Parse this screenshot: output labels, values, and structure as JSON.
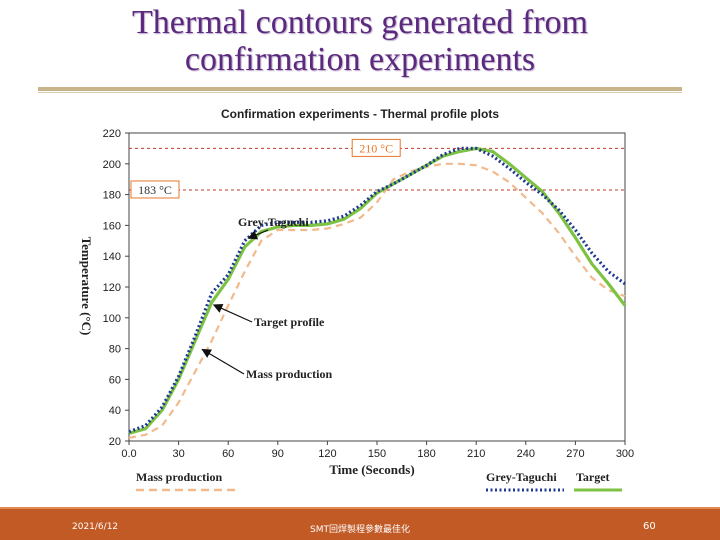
{
  "slide": {
    "title_line1": "Thermal contours generated from",
    "title_line2": "confirmation experiments"
  },
  "footer": {
    "date": "2021/6/12",
    "center": "SMT回焊製程參數最佳化",
    "page": "60"
  },
  "colors": {
    "mass_production": "#f2b98c",
    "grey_taguchi": "#1f3a93",
    "target": "#7dc242",
    "ref_line": "#c0392b",
    "label_box": "#e8782a"
  },
  "chart_data": {
    "type": "line",
    "title": "Confirmation  experiments  -  Thermal  profile  plots",
    "xlabel": "Time (Seconds)",
    "ylabel": "Temperature (°C)",
    "xlim": [
      0,
      300
    ],
    "ylim": [
      20,
      220
    ],
    "x_ticks": [
      "0.0",
      "30",
      "60",
      "90",
      "120",
      "150",
      "180",
      "210",
      "240",
      "270",
      "300"
    ],
    "y_ticks": [
      "20",
      "40",
      "60",
      "80",
      "100",
      "120",
      "140",
      "160",
      "180",
      "200",
      "220"
    ],
    "reference_lines": [
      {
        "label": "210 °C",
        "y": 210
      },
      {
        "label": "183 °C",
        "y": 183
      }
    ],
    "annotations": [
      {
        "text": "Grey-Taguchi",
        "target_x": 73,
        "target_y": 152
      },
      {
        "text": "Target profile",
        "target_x": 52,
        "target_y": 108
      },
      {
        "text": "Mass production",
        "target_x": 45,
        "target_y": 79
      }
    ],
    "legend_top": [
      "Mass production"
    ],
    "legend_right": [
      "Grey-Taguchi",
      "Target"
    ],
    "series": [
      {
        "name": "Mass production",
        "x": [
          0,
          10,
          20,
          30,
          40,
          50,
          60,
          70,
          80,
          90,
          100,
          110,
          120,
          130,
          140,
          150,
          160,
          170,
          180,
          190,
          200,
          210,
          220,
          230,
          240,
          250,
          260,
          270,
          280,
          290,
          300
        ],
        "y": [
          22,
          24,
          30,
          45,
          65,
          85,
          108,
          130,
          150,
          157,
          157,
          157,
          158,
          161,
          165,
          175,
          190,
          195,
          198,
          200,
          200,
          199,
          195,
          188,
          178,
          168,
          155,
          140,
          126,
          118,
          114
        ]
      },
      {
        "name": "Grey-Taguchi",
        "x": [
          0,
          10,
          20,
          30,
          40,
          50,
          60,
          70,
          80,
          90,
          100,
          110,
          120,
          130,
          140,
          150,
          160,
          170,
          180,
          190,
          200,
          210,
          220,
          230,
          240,
          250,
          260,
          270,
          280,
          290,
          300
        ],
        "y": [
          26,
          30,
          42,
          62,
          88,
          116,
          128,
          150,
          160,
          162,
          162,
          162,
          163,
          166,
          173,
          182,
          187,
          193,
          199,
          206,
          210,
          210,
          205,
          197,
          188,
          180,
          170,
          157,
          142,
          130,
          122
        ]
      },
      {
        "name": "Target",
        "x": [
          0,
          10,
          20,
          30,
          40,
          50,
          60,
          70,
          80,
          90,
          100,
          110,
          120,
          130,
          140,
          150,
          160,
          170,
          180,
          190,
          200,
          210,
          220,
          230,
          240,
          250,
          260,
          270,
          280,
          290,
          300
        ],
        "y": [
          25,
          28,
          40,
          60,
          85,
          110,
          125,
          146,
          156,
          159,
          160,
          160,
          161,
          164,
          171,
          181,
          187,
          193,
          199,
          205,
          208,
          210,
          208,
          200,
          191,
          182,
          168,
          152,
          135,
          122,
          108
        ]
      }
    ]
  }
}
